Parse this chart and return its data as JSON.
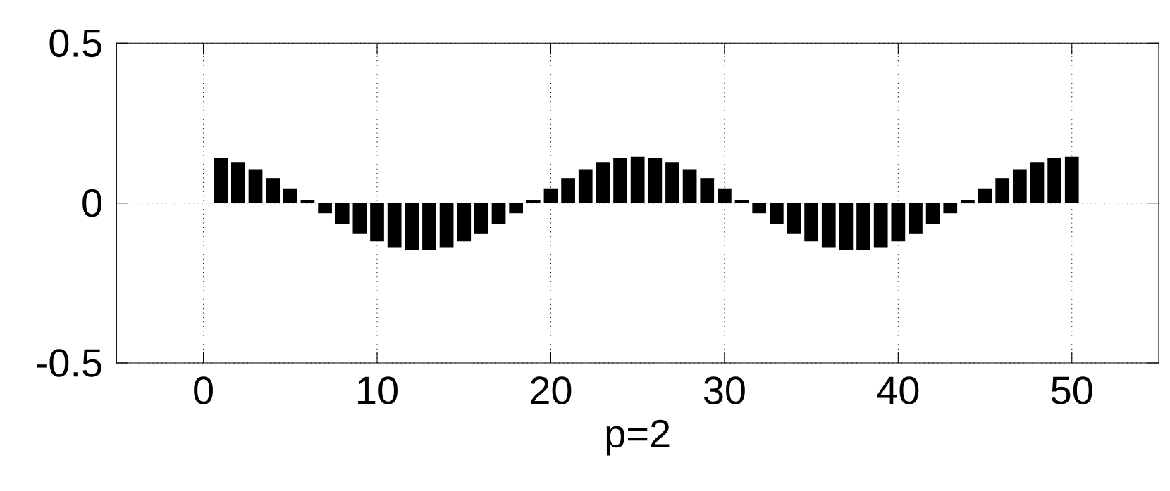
{
  "chart_data": {
    "type": "bar",
    "xlabel": "p=2",
    "x": [
      1,
      2,
      3,
      4,
      5,
      6,
      7,
      8,
      9,
      10,
      11,
      12,
      13,
      14,
      15,
      16,
      17,
      18,
      19,
      20,
      21,
      22,
      23,
      24,
      25,
      26,
      27,
      28,
      29,
      30,
      31,
      32,
      33,
      34,
      35,
      36,
      37,
      38,
      39,
      40,
      41,
      42,
      43,
      44,
      45,
      46,
      47,
      48,
      49,
      50
    ],
    "values": [
      0.14,
      0.126,
      0.106,
      0.078,
      0.046,
      0.01,
      -0.032,
      -0.066,
      -0.095,
      -0.12,
      -0.138,
      -0.147,
      -0.147,
      -0.138,
      -0.12,
      -0.095,
      -0.066,
      -0.032,
      0.01,
      0.046,
      0.078,
      0.106,
      0.126,
      0.14,
      0.145,
      0.14,
      0.126,
      0.106,
      0.078,
      0.046,
      0.01,
      -0.032,
      -0.066,
      -0.095,
      -0.12,
      -0.138,
      -0.147,
      -0.147,
      -0.138,
      -0.12,
      -0.095,
      -0.066,
      -0.032,
      0.01,
      0.046,
      0.078,
      0.106,
      0.126,
      0.14,
      0.145
    ],
    "color": "#000000",
    "xlim": [
      -5,
      55
    ],
    "xticks": [
      0,
      10,
      20,
      30,
      40,
      50
    ],
    "ylim": [
      -0.5,
      0.5
    ],
    "yticks": [
      -0.5,
      0,
      0.5
    ],
    "grid": true
  }
}
